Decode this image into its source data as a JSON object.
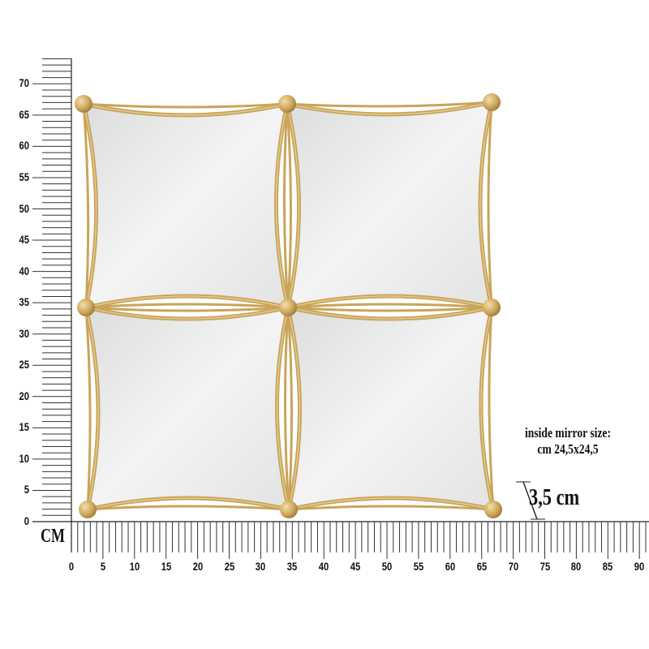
{
  "ruler": {
    "unit": "CM",
    "y_labels": [
      "0",
      "5",
      "10",
      "15",
      "20",
      "25",
      "30",
      "35",
      "40",
      "45",
      "50",
      "55",
      "60",
      "65",
      "70"
    ],
    "x_labels": [
      "0",
      "5",
      "10",
      "15",
      "20",
      "25",
      "30",
      "35",
      "40",
      "45",
      "50",
      "55",
      "60",
      "65",
      "70",
      "75",
      "80",
      "85",
      "90"
    ]
  },
  "product": {
    "description_line1": "inside mirror size:",
    "description_line2": "cm 24,5x24,5",
    "depth_label": "3,5 cm",
    "frame_color": "#c9a45a",
    "mirror_color": "#e9eaea"
  }
}
